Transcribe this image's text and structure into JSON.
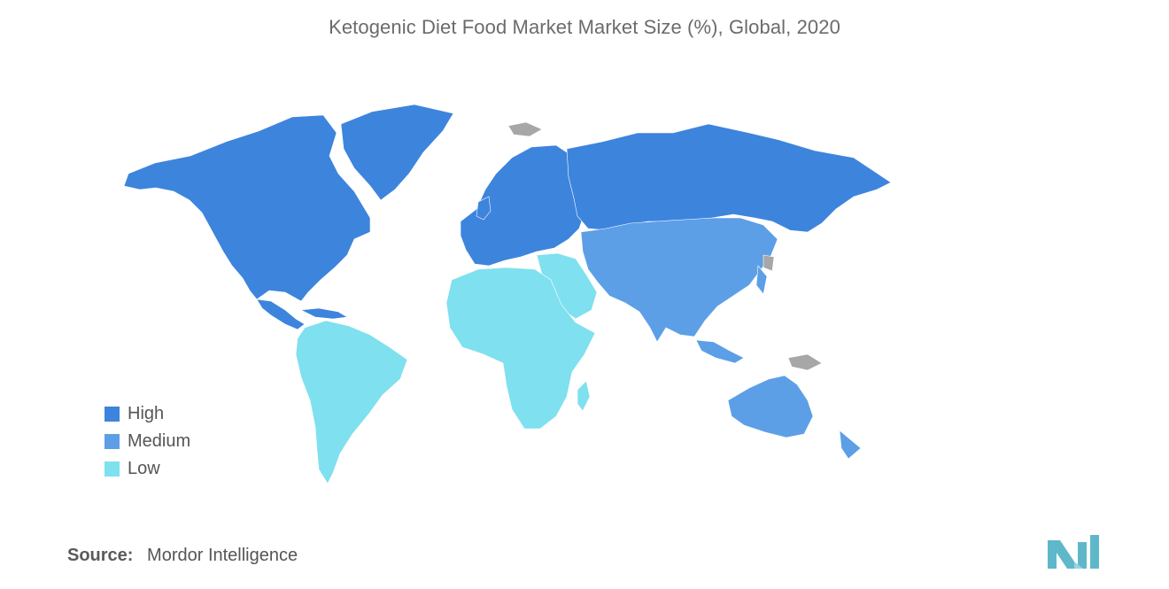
{
  "title": "Ketogenic Diet Food Market Market Size (%), Global, 2020",
  "legend": {
    "items": [
      {
        "label": "High",
        "color": "#3d84dd"
      },
      {
        "label": "Medium",
        "color": "#5c9fe6"
      },
      {
        "label": "Low",
        "color": "#7fe0ef"
      }
    ]
  },
  "no_data_color": "#a7a7a7",
  "regions": {
    "north_america": "High",
    "greenland": "High",
    "europe": "High",
    "russia": "High",
    "asia": "Medium",
    "australia": "Medium",
    "new_zealand": "Medium",
    "south_america": "Low",
    "africa": "Low",
    "middle_east": "Low"
  },
  "source": {
    "label": "Source:",
    "value": "Mordor Intelligence"
  },
  "logo": {
    "icon": "mordor-intelligence-logo-icon",
    "color": "#5fb8c9"
  }
}
